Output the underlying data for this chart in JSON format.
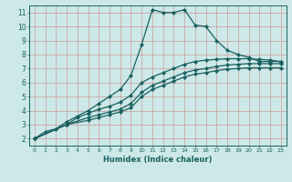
{
  "xlabel": "Humidex (Indice chaleur)",
  "ylabel": "",
  "bg_color": "#cce8e8",
  "grid_color": "#cc9999",
  "line_color": "#1a6060",
  "xlim": [
    -0.5,
    23.5
  ],
  "ylim": [
    1.5,
    11.5
  ],
  "xticks": [
    0,
    1,
    2,
    3,
    4,
    5,
    6,
    7,
    8,
    9,
    10,
    11,
    12,
    13,
    14,
    15,
    16,
    17,
    18,
    19,
    20,
    21,
    22,
    23
  ],
  "yticks": [
    2,
    3,
    4,
    5,
    6,
    7,
    8,
    9,
    10,
    11
  ],
  "line1_x": [
    0,
    1,
    2,
    3,
    4,
    5,
    6,
    7,
    8,
    9,
    10,
    11,
    12,
    13,
    14,
    15,
    16,
    17,
    18,
    19,
    20,
    21,
    22,
    23
  ],
  "line1_y": [
    2.0,
    2.5,
    2.7,
    3.2,
    3.6,
    4.0,
    4.5,
    5.0,
    5.5,
    6.5,
    8.7,
    11.2,
    11.0,
    11.0,
    11.2,
    10.1,
    10.0,
    9.0,
    8.3,
    8.0,
    7.8,
    7.5,
    7.5,
    7.5
  ],
  "line2_x": [
    0,
    3,
    4,
    5,
    6,
    7,
    8,
    9,
    10,
    11,
    12,
    13,
    14,
    15,
    16,
    17,
    18,
    19,
    20,
    21,
    22,
    23
  ],
  "line2_y": [
    2.0,
    3.0,
    3.5,
    3.8,
    4.1,
    4.3,
    4.6,
    5.1,
    6.0,
    6.4,
    6.7,
    7.0,
    7.3,
    7.5,
    7.6,
    7.65,
    7.7,
    7.7,
    7.7,
    7.65,
    7.6,
    7.5
  ],
  "line3_x": [
    0,
    3,
    5,
    6,
    7,
    8,
    9,
    10,
    11,
    12,
    13,
    14,
    15,
    16,
    17,
    18,
    19,
    20,
    21,
    22,
    23
  ],
  "line3_y": [
    2.0,
    3.0,
    3.5,
    3.7,
    3.9,
    4.1,
    4.5,
    5.3,
    5.8,
    6.1,
    6.4,
    6.7,
    6.9,
    7.0,
    7.15,
    7.25,
    7.3,
    7.35,
    7.35,
    7.35,
    7.35
  ],
  "line4_x": [
    0,
    3,
    5,
    6,
    7,
    8,
    9,
    10,
    11,
    12,
    13,
    14,
    15,
    16,
    17,
    18,
    19,
    20,
    21,
    22,
    23
  ],
  "line4_y": [
    2.0,
    3.0,
    3.3,
    3.5,
    3.7,
    3.9,
    4.2,
    5.0,
    5.5,
    5.8,
    6.1,
    6.4,
    6.6,
    6.7,
    6.85,
    6.95,
    7.0,
    7.05,
    7.05,
    7.05,
    7.05
  ]
}
